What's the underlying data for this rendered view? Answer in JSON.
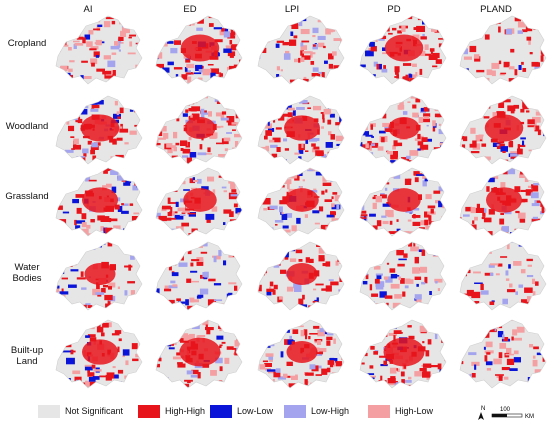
{
  "columns": [
    "AI",
    "ED",
    "LPI",
    "PD",
    "PLAND"
  ],
  "rows": [
    {
      "label_lines": [
        "Cropland"
      ]
    },
    {
      "label_lines": [
        "Woodland"
      ]
    },
    {
      "label_lines": [
        "Grassland"
      ]
    },
    {
      "label_lines": [
        "Water",
        "Bodies"
      ]
    },
    {
      "label_lines": [
        "Built-up",
        "Land"
      ]
    }
  ],
  "legend": [
    {
      "label": "Not Significant",
      "color": "#e6e6e6"
    },
    {
      "label": "High-High",
      "color": "#e8141c"
    },
    {
      "label": "Low-Low",
      "color": "#0a14d8"
    },
    {
      "label": "Low-High",
      "color": "#a3a3ee"
    },
    {
      "label": "High-Low",
      "color": "#f4a0a2"
    }
  ],
  "scale_bar": {
    "north_label": "N",
    "distance": "100",
    "unit": "KM"
  },
  "map_icon": "lisa-cluster-map-region"
}
